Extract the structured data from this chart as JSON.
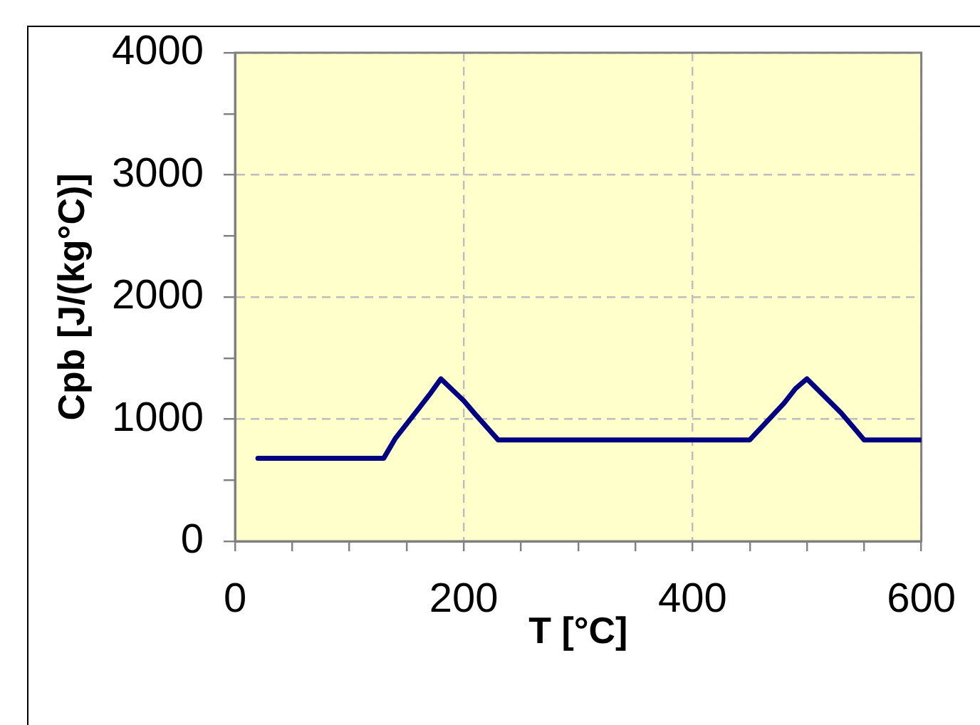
{
  "chart_data": {
    "type": "line",
    "xlabel": "T [°C]",
    "ylabel": "Cpb [J/(kg°C)]",
    "x": [
      20,
      130,
      140,
      160,
      170,
      180,
      200,
      210,
      230,
      450,
      480,
      490,
      500,
      530,
      540,
      550,
      600
    ],
    "values": [
      680,
      680,
      840,
      1080,
      1200,
      1330,
      1150,
      1040,
      830,
      830,
      1130,
      1250,
      1330,
      1050,
      940,
      830,
      830
    ],
    "color": "#000080",
    "xlim": [
      0,
      600
    ],
    "ylim": [
      0,
      4000
    ],
    "xticks": [
      0,
      {
        "value": 50,
        "label": null
      },
      {
        "value": 100,
        "label": null
      },
      {
        "value": 150,
        "label": null
      },
      200,
      {
        "value": 250,
        "label": null
      },
      {
        "value": 300,
        "label": null
      },
      {
        "value": 350,
        "label": null
      },
      400,
      {
        "value": 450,
        "label": null
      },
      {
        "value": 500,
        "label": null
      },
      {
        "value": 550,
        "label": null
      },
      600
    ],
    "yticks": [
      0,
      {
        "value": 500,
        "label": null
      },
      1000,
      {
        "value": 1500,
        "label": null
      },
      2000,
      {
        "value": 2500,
        "label": null
      },
      3000,
      {
        "value": 3500,
        "label": null
      },
      4000
    ],
    "grid": true,
    "marker": "none",
    "line_style": "solid"
  }
}
